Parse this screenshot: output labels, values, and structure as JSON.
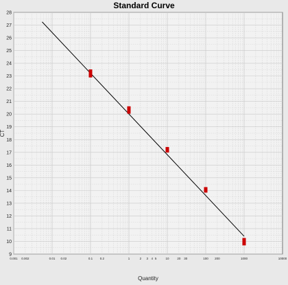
{
  "chart_data": {
    "type": "scatter",
    "title": "Standard Curve",
    "xlabel": "Quantity",
    "ylabel": "CT",
    "xscale": "log",
    "xlim": [
      0.001,
      10000
    ],
    "ylim": [
      9,
      28
    ],
    "grid": true,
    "y_ticks": [
      9,
      10,
      11,
      12,
      13,
      14,
      15,
      16,
      17,
      18,
      19,
      20,
      21,
      22,
      23,
      24,
      25,
      26,
      27,
      28
    ],
    "x_ticks": [
      {
        "value": 0.001,
        "label": "0.001"
      },
      {
        "value": 0.002,
        "label": "0.002"
      },
      {
        "value": 0.01,
        "label": "0.01"
      },
      {
        "value": 0.02,
        "label": "0.02"
      },
      {
        "value": 0.1,
        "label": "0.1"
      },
      {
        "value": 0.2,
        "label": "0.2"
      },
      {
        "value": 1,
        "label": "1"
      },
      {
        "value": 2,
        "label": "2"
      },
      {
        "value": 3,
        "label": "3"
      },
      {
        "value": 4,
        "label": "4"
      },
      {
        "value": 5,
        "label": "5"
      },
      {
        "value": 10,
        "label": "10"
      },
      {
        "value": 20,
        "label": "20"
      },
      {
        "value": 30,
        "label": "30"
      },
      {
        "value": 100,
        "label": "100"
      },
      {
        "value": 200,
        "label": "200"
      },
      {
        "value": 1000,
        "label": "1000"
      },
      {
        "value": 10000,
        "label": "10000"
      }
    ],
    "points": [
      {
        "x": 0.1,
        "y": 23.3
      },
      {
        "x": 0.1,
        "y": 23.1
      },
      {
        "x": 1,
        "y": 20.4
      },
      {
        "x": 1,
        "y": 20.25
      },
      {
        "x": 10,
        "y": 17.2
      },
      {
        "x": 100,
        "y": 14.05
      },
      {
        "x": 1000,
        "y": 10.05
      },
      {
        "x": 1000,
        "y": 9.9
      }
    ],
    "fit_line": {
      "x": [
        0.0055,
        1000
      ],
      "y": [
        27.25,
        10.4
      ]
    },
    "colors": {
      "points": "#cc0000",
      "line": "#000000",
      "plot_bg": "#f2f2f2",
      "grid": "#c8c8c8"
    }
  }
}
